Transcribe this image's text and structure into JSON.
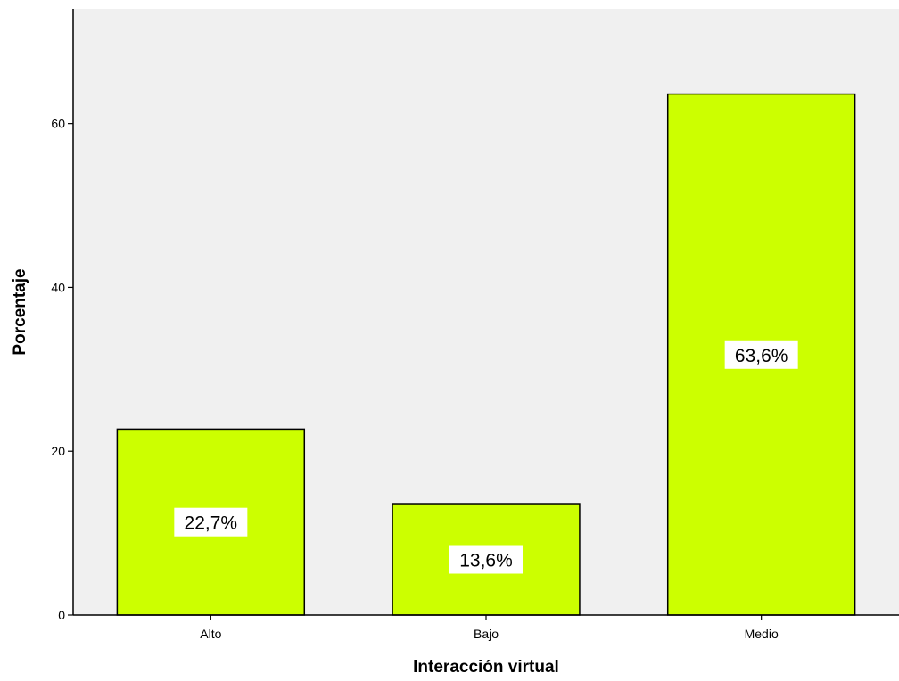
{
  "chart_data": {
    "type": "bar",
    "title": "",
    "xlabel": "Interacción virtual",
    "ylabel": "Porcentaje",
    "categories": [
      "Alto",
      "Bajo",
      "Medio"
    ],
    "values": [
      22.7,
      13.6,
      63.6
    ],
    "data_labels": [
      "22,7%",
      "13,6%",
      "63,6%"
    ],
    "ylim": [
      0,
      74
    ],
    "yticks": [
      0,
      20,
      40,
      60
    ],
    "ytick_labels": [
      "0",
      "20",
      "40",
      "60"
    ],
    "grid": false,
    "legend": "none",
    "colors": {
      "bar_fill": "#CCFF00",
      "bar_stroke": "#000000",
      "plot_background": "#F0F0F0",
      "label_background": "#FFFFFF"
    }
  }
}
